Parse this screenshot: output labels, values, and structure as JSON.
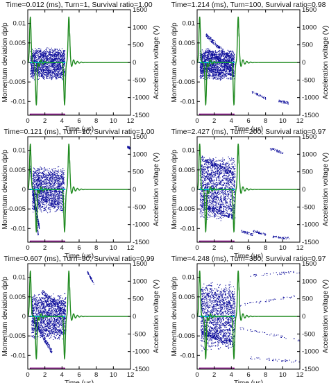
{
  "colors": {
    "particles": "#0a0a9a",
    "voltage_green": "#1f8a1f",
    "reference_cyan": "#00b8c8",
    "gate_purple": "#800080",
    "axes": "#000000"
  },
  "chart_data": [
    {
      "type": "scatter",
      "title": "Time=0.012 (ms), Turn=1, Survival ratio=1.00",
      "xlabel": "Time (μs)",
      "ylabel": "Momentum deviation dp/p",
      "y2label": "Acceleration voltage (V)",
      "xlim": [
        0,
        12
      ],
      "ylim": [
        -0.0135,
        0.0135
      ],
      "y2lim": [
        -1500,
        1500
      ],
      "xticks": [
        "0",
        "2",
        "4",
        "6",
        "8",
        "10",
        "12"
      ],
      "yticks": [
        "0.01",
        "0.005",
        "0",
        "-0.005",
        "-0.01"
      ],
      "y2ticks": [
        "1500",
        "1000",
        "500",
        "0",
        "-500",
        "-1000",
        "-1500"
      ],
      "series": [
        {
          "kind": "particles",
          "blocks": [
            {
              "x": [
                0.3,
                4.3
              ],
              "y": [
                -0.0045,
                0.004
              ]
            }
          ]
        },
        {
          "kind": "voltage",
          "pulses": [
            {
              "t": 0.3,
              "v": 1300
            },
            {
              "t": 1.0,
              "v": -1200
            },
            {
              "t": 4.3,
              "v": -1200
            },
            {
              "t": 4.8,
              "v": 1300
            }
          ]
        },
        {
          "kind": "gate",
          "x": [
            0.3,
            4.3
          ],
          "v": -1470
        }
      ]
    },
    {
      "type": "scatter",
      "title": "Time=1.214 (ms), Turn=100, Survival ratio=0.98",
      "xlabel": "Time (μs)",
      "ylabel": "Momentum deviation dp/p",
      "y2label": "Acceleration voltage (V)",
      "xlim": [
        0,
        12
      ],
      "ylim": [
        -0.0135,
        0.0135
      ],
      "y2lim": [
        -1500,
        1500
      ],
      "xticks": [
        "0",
        "2",
        "4",
        "6",
        "8",
        "10",
        "12"
      ],
      "yticks": [
        "0.01",
        "0.005",
        "0",
        "-0.005",
        "-0.01"
      ],
      "y2ticks": [
        "1500",
        "1000",
        "500",
        "0",
        "-500",
        "-1000",
        "-1500"
      ],
      "series": [
        {
          "kind": "particles",
          "blocks": [
            {
              "x": [
                0.3,
                4.3
              ],
              "y": [
                -0.0045,
                0.0035
              ]
            }
          ],
          "streaks": [
            {
              "x1": 1.0,
              "y1": 0.007,
              "x2": 4.2,
              "y2": 0.0005
            },
            {
              "x1": 1.0,
              "y1": 0.0035,
              "x2": 4.2,
              "y2": -0.002
            }
          ],
          "outliers": [
            {
              "x1": 6.4,
              "y1": -0.0075,
              "x2": 8.0,
              "y2": -0.0092
            },
            {
              "x1": 9.5,
              "y1": -0.0098,
              "x2": 10.6,
              "y2": -0.0103
            }
          ]
        },
        {
          "kind": "voltage",
          "pulses": [
            {
              "t": 0.3,
              "v": 1300
            },
            {
              "t": 1.0,
              "v": -1200
            },
            {
              "t": 4.3,
              "v": -1200
            },
            {
              "t": 4.8,
              "v": 1300
            }
          ]
        },
        {
          "kind": "gate",
          "x": [
            0.3,
            4.3
          ],
          "v": -1470
        }
      ]
    },
    {
      "type": "scatter",
      "title": "Time=0.121 (ms), Turn=10, Survival ratio=1.00",
      "xlabel": "Time (μs)",
      "ylabel": "Momentum deviation dp/p",
      "y2label": "Acceleration voltage (V)",
      "xlim": [
        0,
        12
      ],
      "ylim": [
        -0.0135,
        0.0135
      ],
      "y2lim": [
        -1500,
        1500
      ],
      "xticks": [
        "0",
        "2",
        "4",
        "6",
        "8",
        "10",
        "12"
      ],
      "yticks": [
        "0.01",
        "0.005",
        "0",
        "-0.005",
        "-0.01"
      ],
      "y2ticks": [
        "1500",
        "1000",
        "500",
        "0",
        "-500",
        "-1000",
        "-1500"
      ],
      "series": [
        {
          "kind": "particles",
          "blocks": [
            {
              "x": [
                0.5,
                4.2
              ],
              "y": [
                -0.006,
                0.006
              ]
            }
          ],
          "streaks": [
            {
              "x1": 0.2,
              "y1": 0.006,
              "x2": 1.2,
              "y2": -0.012
            },
            {
              "x1": 0.5,
              "y1": 0.0,
              "x2": 1.3,
              "y2": -0.0095
            }
          ],
          "outliers": [
            {
              "x1": 11.6,
              "y1": 0.011,
              "x2": 12.0,
              "y2": 0.0105
            }
          ]
        },
        {
          "kind": "voltage",
          "pulses": [
            {
              "t": 0.3,
              "v": 1300
            },
            {
              "t": 1.0,
              "v": -1200
            },
            {
              "t": 4.3,
              "v": -1200
            },
            {
              "t": 4.8,
              "v": 1300
            }
          ]
        },
        {
          "kind": "gate",
          "x": [
            0.3,
            4.3
          ],
          "v": -1470
        }
      ]
    },
    {
      "type": "scatter",
      "title": "Time=2.427 (ms), Turn=200, Survival ratio=0.97",
      "xlabel": "Time (μs)",
      "ylabel": "Momentum deviation dp/p",
      "y2label": "Acceleration voltage (V)",
      "xlim": [
        0,
        12
      ],
      "ylim": [
        -0.0135,
        0.0135
      ],
      "y2lim": [
        -1500,
        1500
      ],
      "xticks": [
        "0",
        "2",
        "4",
        "6",
        "8",
        "10",
        "12"
      ],
      "yticks": [
        "0.01",
        "0.005",
        "0",
        "-0.005",
        "-0.01"
      ],
      "y2ticks": [
        "1500",
        "1000",
        "500",
        "0",
        "-500",
        "-1000",
        "-1500"
      ],
      "series": [
        {
          "kind": "particles",
          "blocks": [
            {
              "x": [
                0.3,
                4.4
              ],
              "y": [
                -0.008,
                0.009
              ]
            }
          ],
          "streaks": [
            {
              "x1": 0.5,
              "y1": 0.008,
              "x2": 4.2,
              "y2": 0.004
            },
            {
              "x1": 0.5,
              "y1": -0.004,
              "x2": 4.2,
              "y2": -0.007
            }
          ],
          "outliers": [
            {
              "x1": 8.5,
              "y1": 0.0105,
              "x2": 10.0,
              "y2": 0.0095
            },
            {
              "x1": 5.0,
              "y1": -0.0105,
              "x2": 6.5,
              "y2": -0.0115
            },
            {
              "x1": 6.5,
              "y1": -0.0105,
              "x2": 8.0,
              "y2": -0.0115
            },
            {
              "x1": 8.8,
              "y1": -0.012,
              "x2": 10.8,
              "y2": -0.0125
            }
          ]
        },
        {
          "kind": "voltage",
          "pulses": [
            {
              "t": 0.3,
              "v": 1300
            },
            {
              "t": 1.0,
              "v": -1200
            },
            {
              "t": 4.3,
              "v": -1200
            },
            {
              "t": 4.8,
              "v": 1300
            }
          ]
        },
        {
          "kind": "gate",
          "x": [
            0.3,
            4.3
          ],
          "v": -1470
        }
      ]
    },
    {
      "type": "scatter",
      "title": "Time=0.607 (ms), Turn=50, Survival ratio=0.99",
      "xlabel": "Time (μs)",
      "ylabel": "Momentum deviation dp/p",
      "y2label": "Acceleration voltage (V)",
      "xlim": [
        0,
        12
      ],
      "ylim": [
        -0.0135,
        0.0135
      ],
      "y2lim": [
        -1500,
        1500
      ],
      "xticks": [
        "0",
        "2",
        "4",
        "6",
        "8",
        "10",
        "12"
      ],
      "yticks": [
        "0.01",
        "0.005",
        "0",
        "-0.005",
        "-0.01"
      ],
      "y2ticks": [
        "1500",
        "1000",
        "500",
        "0",
        "-500",
        "-1000",
        "-1500"
      ],
      "series": [
        {
          "kind": "particles",
          "blocks": [
            {
              "x": [
                0.4,
                4.4
              ],
              "y": [
                -0.006,
                0.006
              ]
            }
          ],
          "streaks": [
            {
              "x1": 1.6,
              "y1": 0.0065,
              "x2": 4.4,
              "y2": 0.001
            },
            {
              "x1": 0.6,
              "y1": -0.001,
              "x2": 2.8,
              "y2": -0.009
            }
          ],
          "outliers": [
            {
              "x1": 6.9,
              "y1": 0.0115,
              "x2": 7.7,
              "y2": 0.0085
            }
          ]
        },
        {
          "kind": "voltage",
          "pulses": [
            {
              "t": 0.3,
              "v": 1300
            },
            {
              "t": 1.0,
              "v": -1200
            },
            {
              "t": 4.3,
              "v": -1200
            },
            {
              "t": 4.8,
              "v": 1300
            }
          ]
        },
        {
          "kind": "gate",
          "x": [
            0.3,
            4.3
          ],
          "v": -1470
        }
      ]
    },
    {
      "type": "scatter",
      "title": "Time=4.248 (ms), Turn=350, Survival ratio=0.97",
      "xlabel": "Time (μs)",
      "ylabel": "Momentum deviation dp/p",
      "y2label": "Acceleration voltage (V)",
      "xlim": [
        0,
        12
      ],
      "ylim": [
        -0.0135,
        0.0135
      ],
      "y2lim": [
        -1500,
        1500
      ],
      "xticks": [
        "0",
        "2",
        "4",
        "6",
        "8",
        "10",
        "12"
      ],
      "yticks": [
        "0.01",
        "0.005",
        "0",
        "-0.005",
        "-0.01"
      ],
      "y2ticks": [
        "1500",
        "1000",
        "500",
        "0",
        "-500",
        "-1000",
        "-1500"
      ],
      "series": [
        {
          "kind": "particles",
          "blocks": [
            {
              "x": [
                0.4,
                4.4
              ],
              "y": [
                -0.009,
                0.009
              ]
            }
          ],
          "streaks": [
            {
              "x1": 0.5,
              "y1": -0.004,
              "x2": 4.3,
              "y2": -0.007
            }
          ],
          "outliers": [
            {
              "x1": 5.0,
              "y1": 0.003,
              "x2": 12.0,
              "y2": 0.0055
            },
            {
              "x1": 5.0,
              "y1": -0.003,
              "x2": 12.0,
              "y2": -0.006
            },
            {
              "x1": 6.0,
              "y1": 0.0105,
              "x2": 12.0,
              "y2": 0.0115
            },
            {
              "x1": 6.0,
              "y1": -0.0105,
              "x2": 12.0,
              "y2": -0.0115
            }
          ]
        },
        {
          "kind": "voltage",
          "pulses": [
            {
              "t": 0.3,
              "v": 1300
            },
            {
              "t": 1.0,
              "v": -1200
            },
            {
              "t": 4.3,
              "v": -1200
            },
            {
              "t": 4.8,
              "v": 1300
            }
          ]
        },
        {
          "kind": "gate",
          "x": [
            0.3,
            4.3
          ],
          "v": -1470
        }
      ]
    }
  ]
}
